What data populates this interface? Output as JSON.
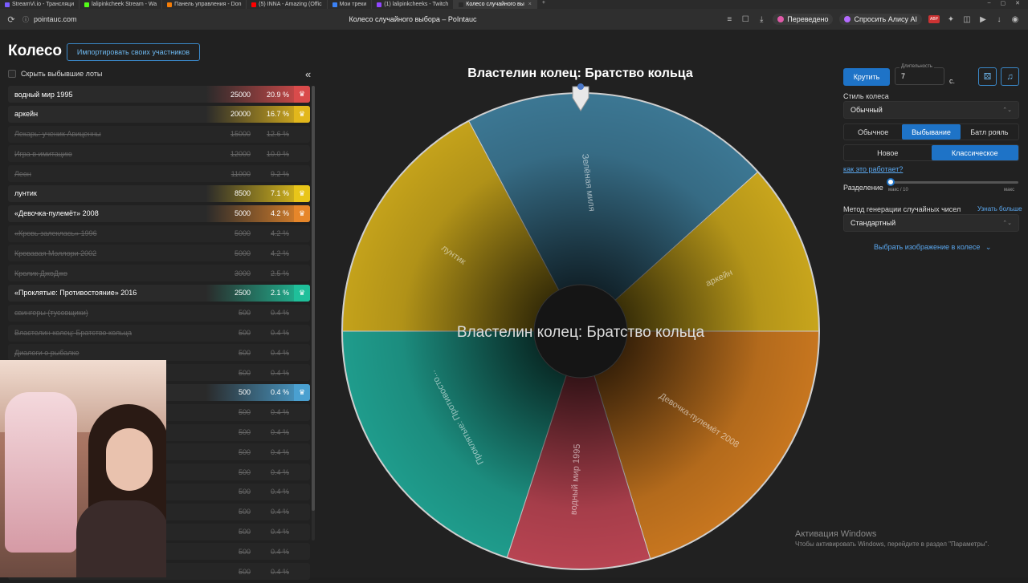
{
  "browser": {
    "tabs": [
      {
        "label": "StreamVi.io - Трансляци",
        "color": "#7a5cff"
      },
      {
        "label": "lalipinkcheek Stream - Wa",
        "color": "#53fc18"
      },
      {
        "label": "Панель управления - Don",
        "color": "#f57d07"
      },
      {
        "label": "(5) INNA - Amazing (Offic",
        "color": "#ff0000"
      },
      {
        "label": "Мои треки",
        "color": "#3b82f6"
      },
      {
        "label": "(1) lalipinkcheeks - Twitch",
        "color": "#9146ff"
      },
      {
        "label": "Колесо случайного вы",
        "color": "#2a2a2a",
        "active": true
      }
    ],
    "new_tab": "+",
    "url": "pointauc.com",
    "page_title": "Колесо случайного выбора – PoIntauc",
    "translated_label": "Переведено",
    "alice_label": "Спросить Алису AI",
    "abp_label": "ABP"
  },
  "page": {
    "heading": "Колесо",
    "import_button": "Импортировать своих участников",
    "hide_label": "Скрыть выбывшие лоты",
    "collapse_icon": "«"
  },
  "lots": [
    {
      "name": "водный мир 1995",
      "amount": "25000",
      "pct": "20.9 %",
      "color": "#d94b4b",
      "active": true
    },
    {
      "name": "аркейн",
      "amount": "20000",
      "pct": "16.7 %",
      "color": "#e2b71c",
      "active": true
    },
    {
      "name": "Лекарь: ученик Авиценны",
      "amount": "15000",
      "pct": "12.6 %",
      "active": false
    },
    {
      "name": "Игра в имитацию",
      "amount": "12000",
      "pct": "10.0 %",
      "active": false
    },
    {
      "name": "Леон",
      "amount": "11000",
      "pct": "9.2 %",
      "active": false
    },
    {
      "name": "лунтик",
      "amount": "8500",
      "pct": "7.1 %",
      "color": "#e8c519",
      "active": true
    },
    {
      "name": "«Девочка-пулемёт» 2008",
      "amount": "5000",
      "pct": "4.2 %",
      "color": "#e6862a",
      "active": true
    },
    {
      "name": "«Кровь залеклась» 1996",
      "amount": "5000",
      "pct": "4.2 %",
      "active": false
    },
    {
      "name": "Кровавая Мэллори 2002",
      "amount": "5000",
      "pct": "4.2 %",
      "active": false
    },
    {
      "name": "Кролик ДжоДжо",
      "amount": "3000",
      "pct": "2.5 %",
      "active": false
    },
    {
      "name": "«Проклятые: Противостояние» 2016",
      "amount": "2500",
      "pct": "2.1 %",
      "color": "#1fbf9a",
      "active": true
    },
    {
      "name": "свингеры (тусовщики)",
      "amount": "500",
      "pct": "0.4 %",
      "active": false
    },
    {
      "name": "Властелин колец: Братство кольца",
      "amount": "500",
      "pct": "0.4 %",
      "active": false
    },
    {
      "name": "Диалоги о рыбалке",
      "amount": "500",
      "pct": "0.4 %",
      "active": false
    },
    {
      "name": "",
      "amount": "500",
      "pct": "0.4 %",
      "active": false
    },
    {
      "name": "",
      "amount": "500",
      "pct": "0.4 %",
      "color": "#4aa0d0",
      "active": true
    },
    {
      "name": "",
      "amount": "500",
      "pct": "0.4 %",
      "active": false
    },
    {
      "name": "",
      "amount": "500",
      "pct": "0.4 %",
      "active": false
    },
    {
      "name": "",
      "amount": "500",
      "pct": "0.4 %",
      "active": false
    },
    {
      "name": "",
      "amount": "500",
      "pct": "0.4 %",
      "active": false
    },
    {
      "name": "",
      "amount": "500",
      "pct": "0.4 %",
      "active": false
    },
    {
      "name": "",
      "amount": "500",
      "pct": "0.4 %",
      "active": false
    },
    {
      "name": "",
      "amount": "500",
      "pct": "0.4 %",
      "active": false
    },
    {
      "name": "",
      "amount": "500",
      "pct": "0.4 %",
      "active": false
    },
    {
      "name": "",
      "amount": "500",
      "pct": "0.4 %",
      "active": false
    }
  ],
  "wheel": {
    "title": "Властелин колец: Братство кольца",
    "center_label": "Властелин колец: Братство кольца",
    "sectors": [
      {
        "label": "Зелёная миля",
        "color": "#3c7793"
      },
      {
        "label": "аркейн",
        "color": "#c8a51c"
      },
      {
        "label": "Девочка-пулемёт 2008",
        "color": "#c7761f"
      },
      {
        "label": "водный мир 1995",
        "color": "#b84452"
      },
      {
        "label": "Проклятые: Противосто...",
        "color": "#1f9c8c"
      },
      {
        "label": "лунтик",
        "color": "#c4a21b"
      }
    ]
  },
  "controls": {
    "spin_button": "Крутить",
    "duration_label": "Длительность",
    "duration_value": "7",
    "duration_unit": "с.",
    "style_label": "Стиль колеса",
    "style_value": "Обычный",
    "mode_options": [
      "Обычное",
      "Выбывание",
      "Батл рояль"
    ],
    "mode_selected": 1,
    "variant_options": [
      "Новое",
      "Классическое"
    ],
    "variant_selected": 1,
    "how_link": "как это работает?",
    "split_label": "Разделение",
    "split_min": "макс / 10",
    "split_max": "макс",
    "rng_label": "Метод генерации случайных чисел",
    "rng_link": "Узнать больше",
    "rng_value": "Стандартный",
    "image_link": "Выбрать изображение в колесе"
  },
  "watermark": {
    "line1": "Активация Windows",
    "line2": "Чтобы активировать Windows, перейдите в раздел \"Параметры\"."
  }
}
